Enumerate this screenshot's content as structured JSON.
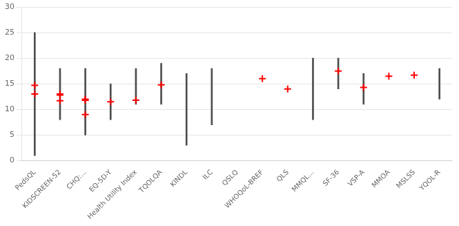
{
  "chart_data": {
    "type": "range",
    "categories": [
      "PedsQL",
      "KIDSCREEN-52",
      "CHQ:...",
      "EQ-5D-Y",
      "Health Utility Index",
      "TQOLQA",
      "KINDL",
      "ILC",
      "QSLQ",
      "WHOQoL-BREF",
      "QLS",
      "MMQL...",
      "SF-36",
      "VSP-A",
      "MMOA",
      "MSLSS",
      "YQOL-R"
    ],
    "series": [
      {
        "type": "bar",
        "color": "#4d4d4d",
        "low": [
          1,
          8,
          5,
          8,
          11,
          11,
          3,
          7,
          null,
          null,
          null,
          8,
          14,
          11,
          null,
          null,
          12
        ],
        "high": [
          25,
          18,
          18,
          15,
          18,
          19,
          17,
          18,
          null,
          null,
          null,
          20,
          20,
          17,
          null,
          null,
          18
        ]
      },
      {
        "type": "scatter",
        "color": "#ff0000",
        "marker": "plus",
        "values": [
          [
            13.0,
            14.7
          ],
          [
            11.7,
            12.8,
            13.0
          ],
          [
            9.0,
            11.8,
            12.0
          ],
          [
            11.5
          ],
          [
            11.8
          ],
          [
            14.8
          ],
          null,
          null,
          null,
          [
            16.0
          ],
          [
            14.0
          ],
          null,
          [
            17.5
          ],
          [
            14.3
          ],
          [
            16.5
          ],
          [
            16.7
          ],
          null
        ]
      }
    ],
    "ylim": [
      0,
      30
    ],
    "yticks": [
      0,
      5,
      10,
      15,
      20,
      25,
      30
    ],
    "grid": true
  }
}
